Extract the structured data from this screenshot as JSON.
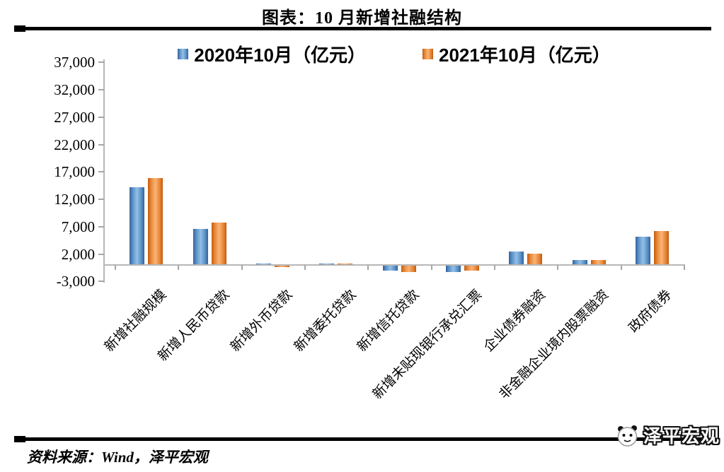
{
  "page": {
    "title": "图表：10 月新增社融结构",
    "source_note": "资料来源：Wind，泽平宏观",
    "logo_text": "泽平宏观"
  },
  "legend": {
    "items": [
      {
        "label": "2020年10月（亿元）",
        "color": "#4f81bd"
      },
      {
        "label": "2021年10月（亿元）",
        "color": "#ed7d31"
      }
    ]
  },
  "chart_data": {
    "type": "bar",
    "title": "图表：10 月新增社融结构",
    "unit": "亿元",
    "categories": [
      "新增社融规模",
      "新增人民币贷款",
      "新增外币贷款",
      "新增委托贷款",
      "新增信托贷款",
      "新增未贴现银行承兑汇票",
      "企业债券融资",
      "非金融企业境内股票融资",
      "政府债券"
    ],
    "series": [
      {
        "name": "2020年10月（亿元）",
        "color": "#4f81bd",
        "values": [
          14200,
          6600,
          300,
          150,
          -900,
          -1100,
          2400,
          900,
          5100
        ]
      },
      {
        "name": "2021年10月（亿元）",
        "color": "#ed7d31",
        "values": [
          15900,
          7800,
          -30,
          100,
          -1100,
          -900,
          2100,
          850,
          6200
        ]
      }
    ],
    "ylim": [
      -3000,
      37000
    ],
    "ytick_interval": 5000,
    "yticks": [
      37000,
      32000,
      27000,
      22000,
      17000,
      12000,
      7000,
      2000,
      -3000
    ],
    "grid": false,
    "legend_position": "top",
    "xlabel": "",
    "ylabel": ""
  }
}
